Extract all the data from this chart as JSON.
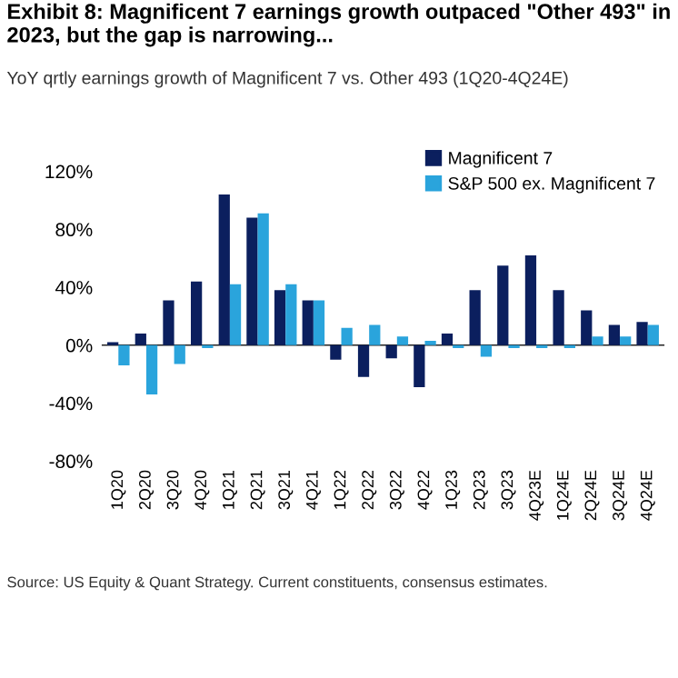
{
  "chart_data": {
    "type": "bar",
    "title": "Exhibit 8: Magnificent 7 earnings growth outpaced \"Other 493\" in 2023, but the gap is narrowing...",
    "subtitle": "YoY qrtly earnings growth of Magnificent 7 vs. Other 493 (1Q20-4Q24E)",
    "categories": [
      "1Q20",
      "2Q20",
      "3Q20",
      "4Q20",
      "1Q21",
      "2Q21",
      "3Q21",
      "4Q21",
      "1Q22",
      "2Q22",
      "3Q22",
      "4Q22",
      "1Q23",
      "2Q23",
      "3Q23",
      "4Q23E",
      "1Q24E",
      "2Q24E",
      "3Q24E",
      "4Q24E"
    ],
    "series": [
      {
        "name": "Magnificent 7",
        "color": "#0b1f5e",
        "values": [
          2,
          8,
          31,
          44,
          104,
          88,
          38,
          31,
          -10,
          -22,
          -9,
          -29,
          8,
          38,
          55,
          62,
          38,
          24,
          14,
          16
        ]
      },
      {
        "name": "S&P 500 ex. Magnificent 7",
        "color": "#2aa4dc",
        "values": [
          -14,
          -34,
          -13,
          -2,
          42,
          91,
          42,
          31,
          12,
          14,
          6,
          3,
          -2,
          -8,
          -2,
          -2,
          -2,
          6,
          6,
          14
        ]
      }
    ],
    "ylim": [
      -80,
      140
    ],
    "ref_lines": [
      {
        "axis": "y",
        "value": 0,
        "color": "#222222"
      }
    ],
    "yticks": [
      {
        "value": -80,
        "label": "-80%"
      },
      {
        "value": -40,
        "label": "-40%"
      },
      {
        "value": 0,
        "label": "0%"
      },
      {
        "value": 40,
        "label": "40%"
      },
      {
        "value": 80,
        "label": "80%"
      },
      {
        "value": 120,
        "label": "120%"
      }
    ],
    "grid": false,
    "legend": "top right",
    "annotations": [
      "Source: US Equity & Quant Strategy. Current constituents, consensus estimates."
    ]
  }
}
